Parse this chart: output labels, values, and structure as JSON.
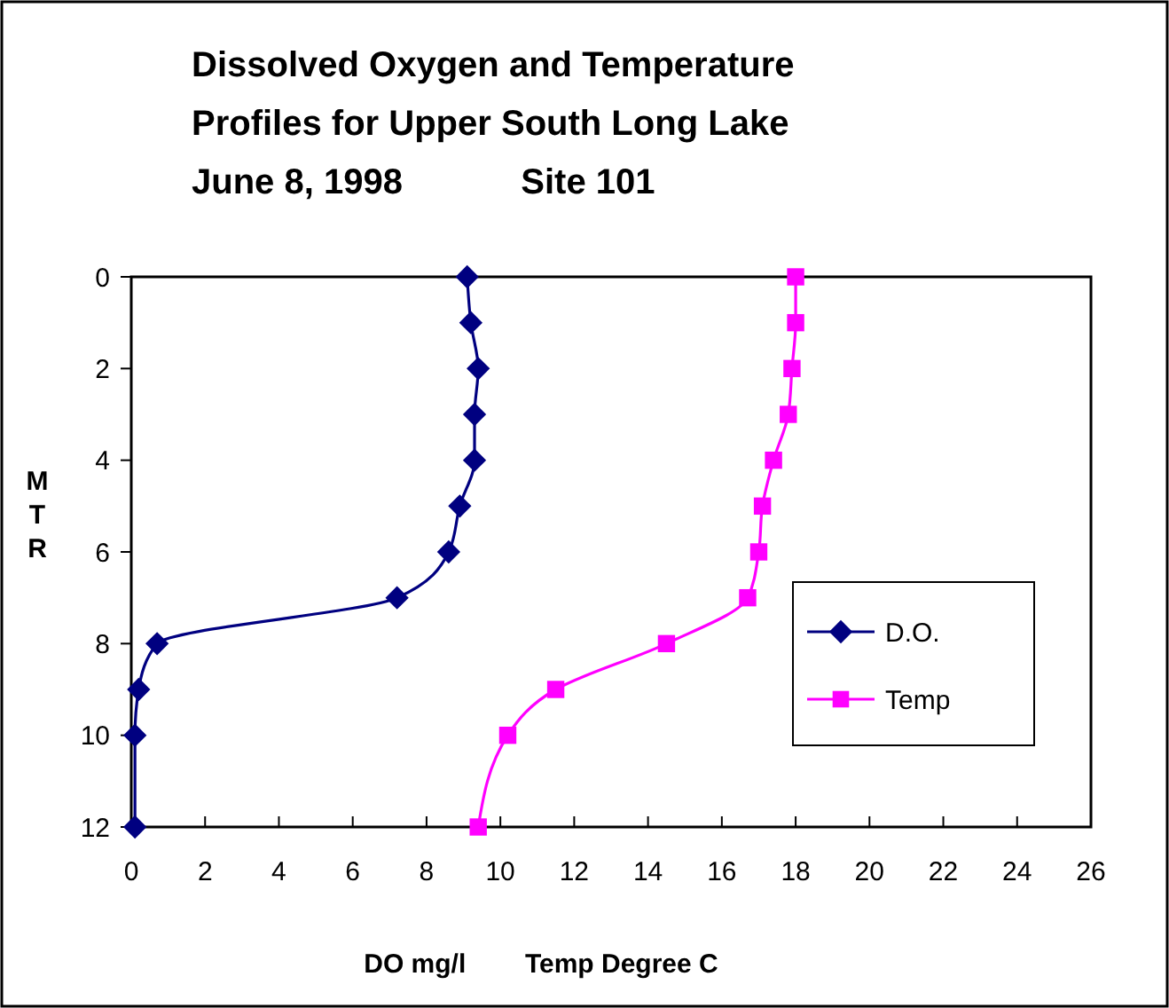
{
  "chart_data": {
    "type": "line",
    "title": "Dissolved Oxygen and Temperature\nProfiles for Upper South Long Lake\nJune 8, 1998            Site 101",
    "xlabel": "DO mg/l        Temp Degree C",
    "ylabel": "MTR",
    "xlim": [
      0,
      26
    ],
    "xticks": [
      0,
      2,
      4,
      6,
      8,
      10,
      12,
      14,
      16,
      18,
      20,
      22,
      24,
      26
    ],
    "ylim": [
      12,
      0
    ],
    "yticks": [
      0,
      2,
      4,
      6,
      8,
      10,
      12
    ],
    "grid": false,
    "legend": "right",
    "series": [
      {
        "name": "D.O.",
        "color": "#000080",
        "marker": "diamond",
        "x": [
          9.1,
          9.2,
          9.4,
          9.3,
          9.3,
          8.9,
          8.6,
          7.2,
          0.7,
          0.2,
          0.1,
          0.1
        ],
        "values": [
          0,
          1,
          2,
          3,
          4,
          5,
          6,
          7,
          8,
          9,
          10,
          12
        ]
      },
      {
        "name": "Temp",
        "color": "#ff00ff",
        "marker": "square",
        "x": [
          18.0,
          18.0,
          17.9,
          17.8,
          17.4,
          17.1,
          17.0,
          16.7,
          14.5,
          11.5,
          10.2,
          9.4
        ],
        "values": [
          0,
          1,
          2,
          3,
          4,
          5,
          6,
          7,
          8,
          9,
          10,
          12
        ]
      }
    ]
  }
}
